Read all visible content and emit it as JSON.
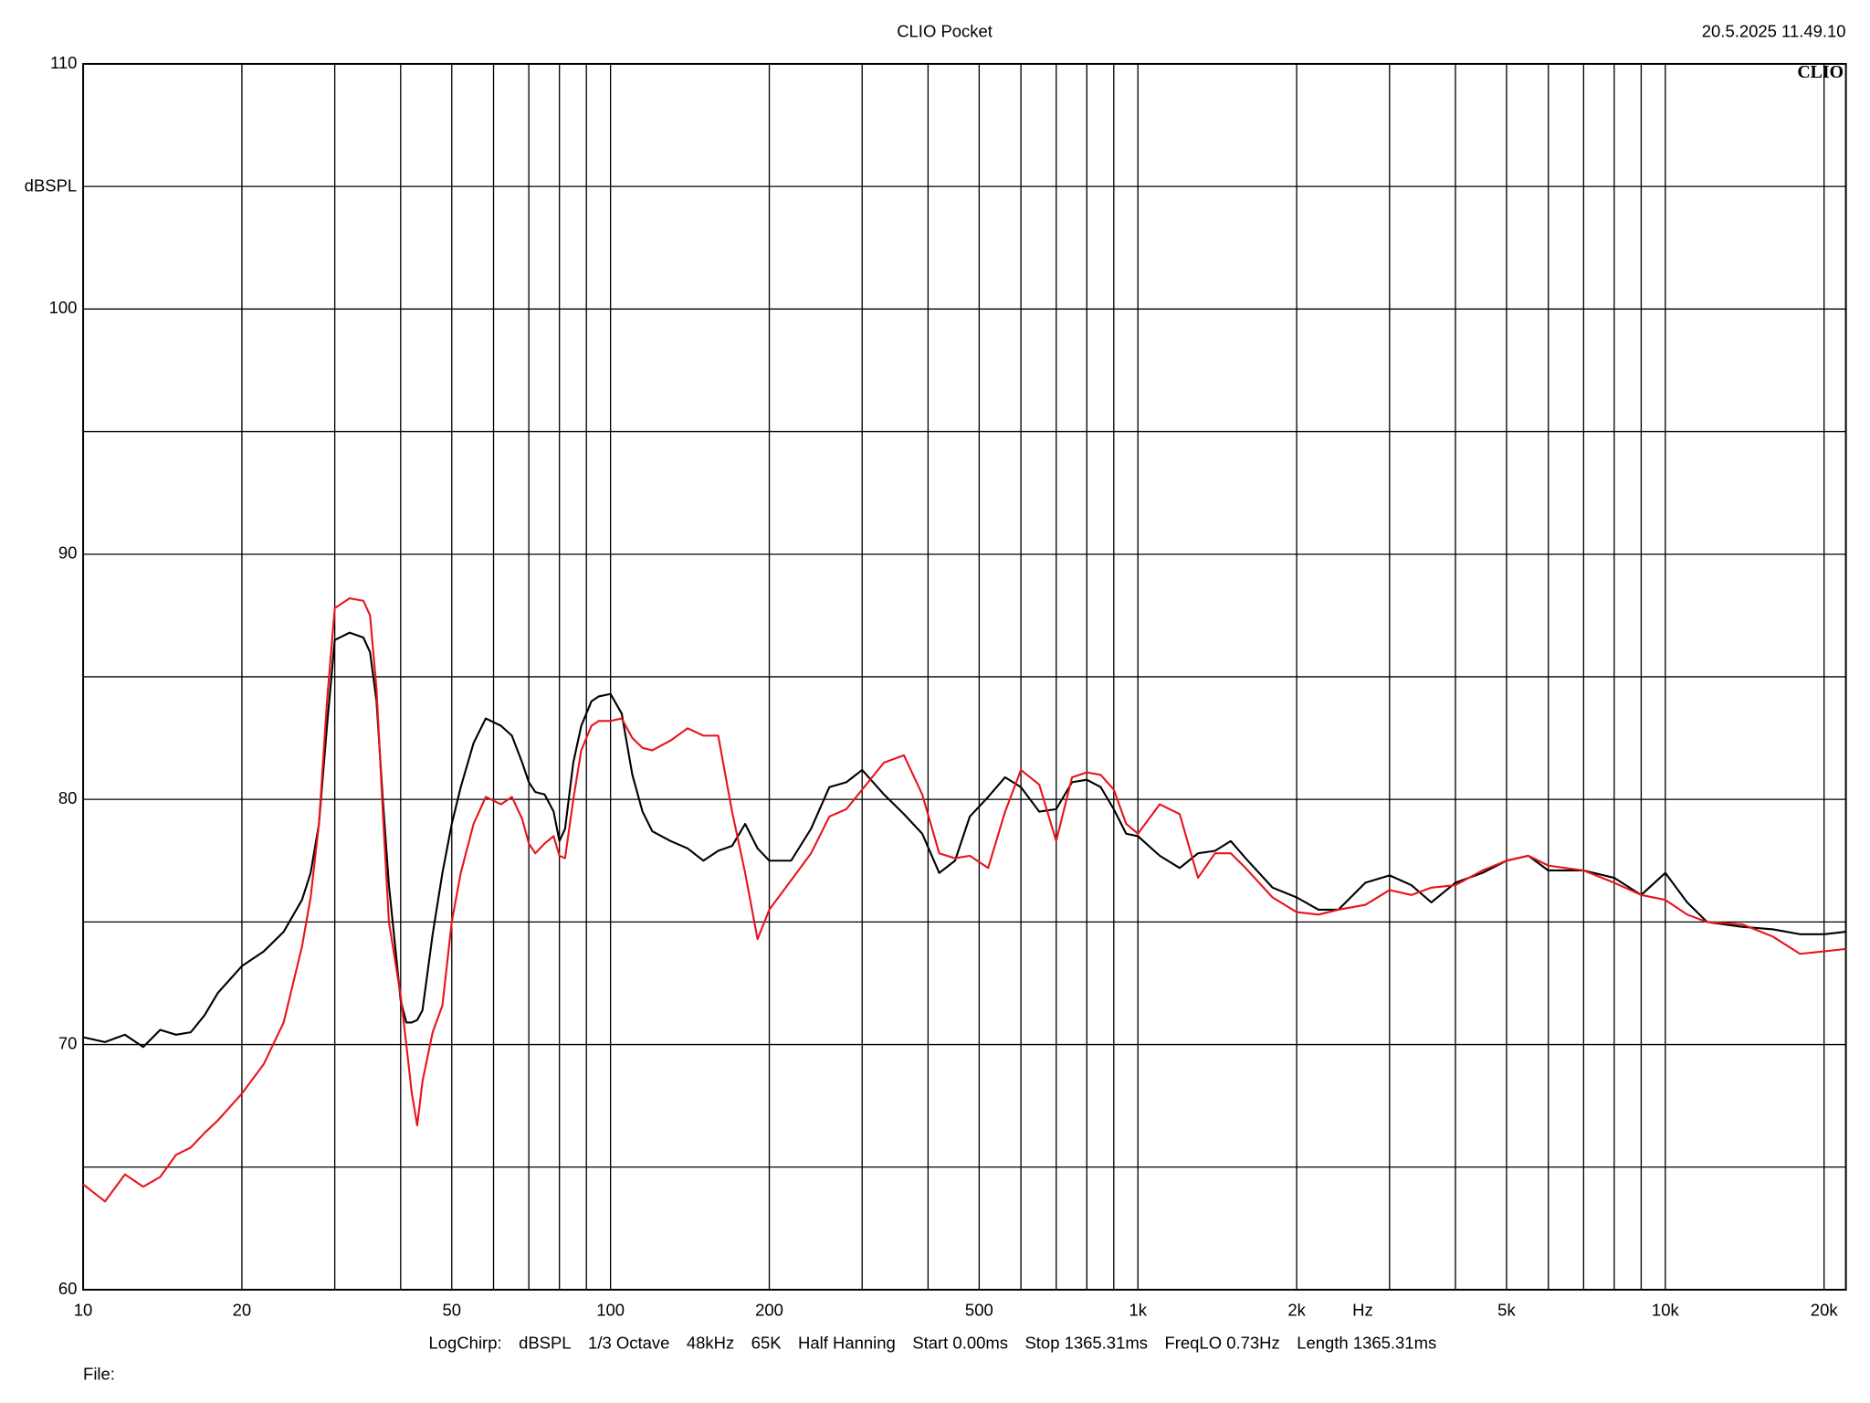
{
  "chart_data": {
    "type": "line",
    "title": "CLIO Pocket",
    "timestamp": "20.5.2025 11.49.10",
    "logo": "CLIO",
    "y_label": "dBSPL",
    "x_label": "Hz",
    "settings": [
      "LogChirp:",
      "dBSPL",
      "1/3 Octave",
      "48kHz",
      "65K",
      "Half Hanning",
      "Start 0.00ms",
      "Stop 1365.31ms",
      "FreqLO 0.73Hz",
      "Length 1365.31ms"
    ],
    "file_label": "File:",
    "xscale": "log",
    "grid": true,
    "xlim": [
      10,
      22000
    ],
    "ylim": [
      60,
      110
    ],
    "yticks": [
      60,
      70,
      80,
      90,
      100,
      110
    ],
    "yminor": [
      65,
      75,
      85,
      95,
      105
    ],
    "xticks": [
      10,
      20,
      50,
      100,
      200,
      500,
      {
        "value": 1000,
        "label": "1k"
      },
      {
        "value": 2000,
        "label": "2k"
      },
      {
        "value": 5000,
        "label": "5k"
      },
      {
        "value": 10000,
        "label": "10k"
      },
      {
        "value": 20000,
        "label": "20k"
      }
    ],
    "xminor": [
      30,
      40,
      60,
      70,
      80,
      90,
      300,
      400,
      600,
      700,
      800,
      900,
      3000,
      4000,
      6000,
      7000,
      8000,
      9000
    ],
    "x": [
      10,
      11,
      12,
      13,
      14,
      15,
      16,
      17,
      18,
      20,
      22,
      24,
      26,
      27,
      28,
      29,
      30,
      32,
      34,
      35,
      36,
      37,
      38,
      40,
      41,
      42,
      43,
      44,
      46,
      48,
      50,
      52,
      55,
      58,
      62,
      65,
      68,
      70,
      72,
      75,
      78,
      80,
      82,
      85,
      88,
      92,
      95,
      100,
      105,
      110,
      115,
      120,
      130,
      140,
      150,
      160,
      170,
      180,
      190,
      200,
      220,
      240,
      260,
      280,
      300,
      330,
      360,
      390,
      420,
      450,
      480,
      520,
      560,
      600,
      650,
      700,
      750,
      800,
      850,
      900,
      950,
      1000,
      1100,
      1200,
      1300,
      1400,
      1500,
      1600,
      1800,
      2000,
      2200,
      2400,
      2700,
      3000,
      3300,
      3600,
      4000,
      4500,
      5000,
      5500,
      6000,
      7000,
      8000,
      9000,
      10000,
      11000,
      12000,
      14000,
      16000,
      18000,
      20000,
      22000
    ],
    "series": [
      {
        "color": "#000000",
        "values": [
          70.3,
          70.1,
          70.4,
          69.9,
          70.6,
          70.4,
          70.5,
          71.2,
          72.1,
          73.2,
          73.8,
          74.6,
          75.9,
          77.0,
          79.0,
          83.0,
          86.5,
          86.8,
          86.6,
          86.0,
          84.0,
          80.0,
          76.5,
          71.8,
          70.9,
          70.9,
          71.0,
          71.4,
          74.5,
          77.0,
          79.0,
          80.5,
          82.3,
          83.3,
          83.0,
          82.6,
          81.5,
          80.7,
          80.3,
          80.2,
          79.5,
          78.3,
          78.8,
          81.5,
          83.0,
          84.0,
          84.2,
          84.3,
          83.5,
          81.0,
          79.5,
          78.7,
          78.3,
          78.0,
          77.5,
          77.9,
          78.1,
          79.0,
          78.0,
          77.5,
          77.5,
          78.8,
          80.5,
          80.7,
          81.2,
          80.2,
          79.4,
          78.6,
          77.0,
          77.5,
          79.3,
          80.1,
          80.9,
          80.5,
          79.5,
          79.6,
          80.7,
          80.8,
          80.5,
          79.6,
          78.6,
          78.5,
          77.7,
          77.2,
          77.8,
          77.9,
          78.3,
          77.6,
          76.4,
          76.0,
          75.5,
          75.5,
          76.6,
          76.9,
          76.5,
          75.8,
          76.6,
          77.0,
          77.5,
          77.7,
          77.1,
          77.1,
          76.8,
          76.1,
          77.0,
          75.8,
          75.0,
          74.8,
          74.7,
          74.5,
          74.5,
          74.6
        ]
      },
      {
        "color": "#e8141c",
        "values": [
          64.3,
          63.6,
          64.7,
          64.2,
          64.6,
          65.5,
          65.8,
          66.4,
          66.9,
          68.0,
          69.2,
          70.9,
          74.0,
          76.0,
          79.0,
          84.0,
          87.8,
          88.2,
          88.1,
          87.5,
          84.5,
          79.5,
          75.0,
          72.0,
          70.0,
          68.0,
          66.7,
          68.5,
          70.5,
          71.6,
          75.0,
          77.0,
          79.0,
          80.1,
          79.8,
          80.1,
          79.2,
          78.2,
          77.8,
          78.2,
          78.5,
          77.7,
          77.6,
          80.0,
          82.0,
          83.0,
          83.2,
          83.2,
          83.3,
          82.5,
          82.1,
          82.0,
          82.4,
          82.9,
          82.6,
          82.6,
          79.5,
          77.0,
          74.3,
          75.5,
          76.7,
          77.8,
          79.3,
          79.6,
          80.4,
          81.5,
          81.8,
          80.2,
          77.8,
          77.6,
          77.7,
          77.2,
          79.5,
          81.2,
          80.6,
          78.3,
          80.9,
          81.1,
          81.0,
          80.4,
          79.0,
          78.6,
          79.8,
          79.4,
          76.8,
          77.8,
          77.8,
          77.2,
          76.0,
          75.4,
          75.3,
          75.5,
          75.7,
          76.3,
          76.1,
          76.4,
          76.5,
          77.1,
          77.5,
          77.7,
          77.3,
          77.1,
          76.6,
          76.1,
          75.9,
          75.3,
          75.0,
          74.9,
          74.4,
          73.7,
          73.8,
          73.9
        ]
      }
    ]
  }
}
